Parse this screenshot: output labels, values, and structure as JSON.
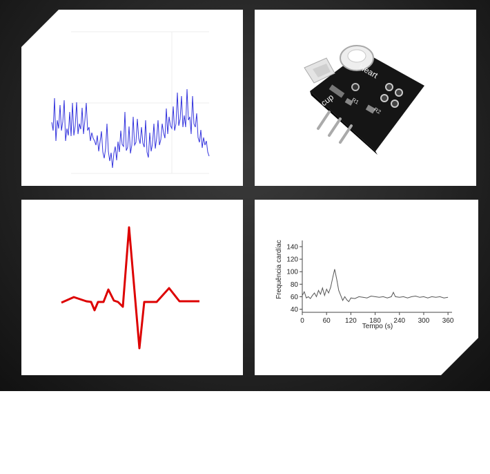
{
  "slide": {
    "background": "#1e1e1e",
    "panel_color": "#ffffff"
  },
  "panels": [
    {
      "name": "wave-plot",
      "line_color": "#3333dd"
    },
    {
      "name": "sensor-photo",
      "board_color": "#141414",
      "board_labels": {
        "title": "Heart",
        "subtitle": "cup",
        "label_r1": "R1",
        "label_r2": "R2"
      }
    },
    {
      "name": "ecg-pulse",
      "line_color": "#dd0000"
    },
    {
      "name": "heart-rate-chart"
    }
  ],
  "chart_data": {
    "type": "line",
    "title": "",
    "xlabel": "Tempo (s)",
    "ylabel": "Frequência cardíac",
    "xlim": [
      0,
      370
    ],
    "ylim": [
      35,
      150
    ],
    "xticks": [
      0,
      60,
      120,
      180,
      240,
      300,
      360
    ],
    "yticks": [
      40,
      60,
      80,
      100,
      120,
      140
    ],
    "series": [
      {
        "color": "#555555",
        "x": [
          0,
          5,
          10,
          15,
          20,
          25,
          30,
          35,
          40,
          45,
          50,
          55,
          60,
          65,
          70,
          75,
          80,
          85,
          90,
          95,
          100,
          105,
          110,
          115,
          120,
          130,
          140,
          150,
          160,
          170,
          180,
          190,
          200,
          210,
          220,
          225,
          230,
          240,
          250,
          260,
          270,
          280,
          290,
          300,
          310,
          320,
          330,
          340,
          350,
          360
        ],
        "y": [
          62,
          68,
          58,
          60,
          57,
          62,
          66,
          60,
          70,
          64,
          74,
          62,
          72,
          66,
          75,
          90,
          104,
          88,
          70,
          62,
          54,
          60,
          55,
          52,
          58,
          57,
          60,
          59,
          58,
          61,
          60,
          59,
          60,
          58,
          60,
          67,
          60,
          59,
          60,
          58,
          60,
          61,
          59,
          60,
          58,
          60,
          59,
          60,
          58,
          59
        ]
      }
    ]
  }
}
